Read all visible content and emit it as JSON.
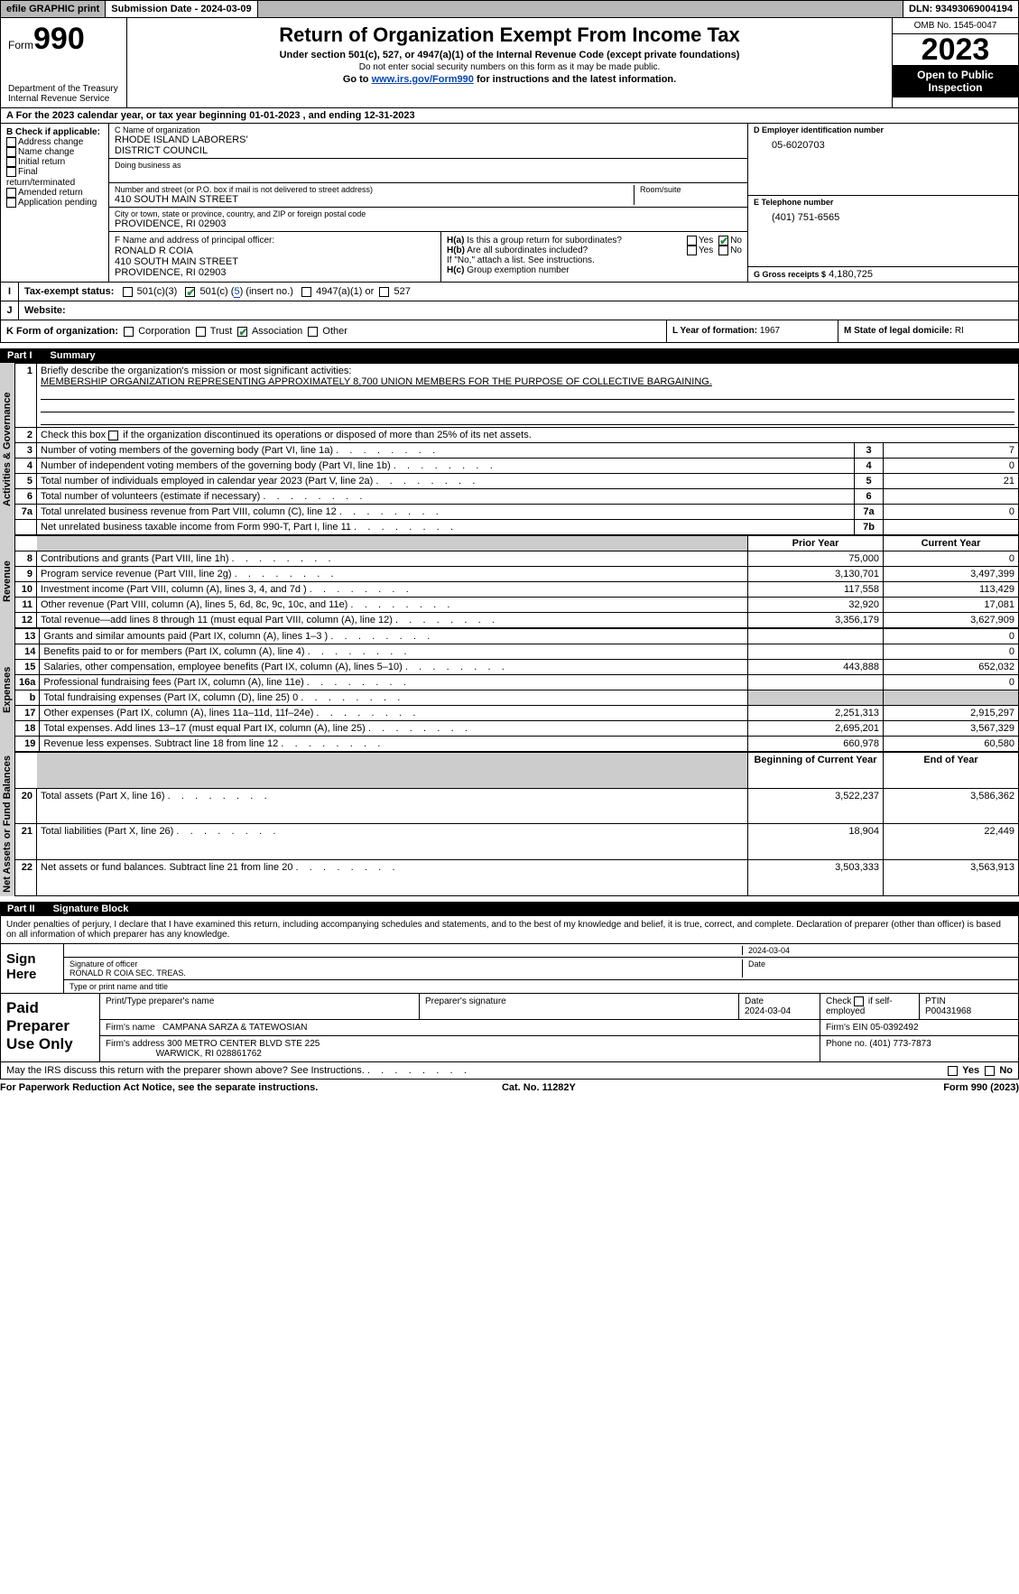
{
  "topbar": {
    "efile": "efile GRAPHIC print",
    "submission": "Submission Date - 2024-03-09",
    "dln": "DLN: 93493069004194"
  },
  "header": {
    "form_label": "Form",
    "form_no": "990",
    "dept1": "Department of the Treasury",
    "dept2": "Internal Revenue Service",
    "title": "Return of Organization Exempt From Income Tax",
    "sub1": "Under section 501(c), 527, or 4947(a)(1) of the Internal Revenue Code (except private foundations)",
    "sub2": "Do not enter social security numbers on this form as it may be made public.",
    "sub3_a": "Go to ",
    "sub3_link": "www.irs.gov/Form990",
    "sub3_b": " for instructions and the latest information.",
    "omb": "OMB No. 1545-0047",
    "year": "2023",
    "open": "Open to Public Inspection"
  },
  "rowA": "For the 2023 calendar year, or tax year beginning 01-01-2023    , and ending 12-31-2023",
  "B": {
    "hdr": "B Check if applicable:",
    "opts": [
      "Address change",
      "Name change",
      "Initial return",
      "Final return/terminated",
      "Amended return",
      "Application pending"
    ]
  },
  "C": {
    "name_lbl": "C Name of organization",
    "name1": "RHODE ISLAND LABORERS'",
    "name2": "DISTRICT COUNCIL",
    "dba_lbl": "Doing business as",
    "addr_lbl": "Number and street (or P.O. box if mail is not delivered to street address)",
    "addr": "410 SOUTH MAIN STREET",
    "room_lbl": "Room/suite",
    "city_lbl": "City or town, state or province, country, and ZIP or foreign postal code",
    "city": "PROVIDENCE, RI  02903"
  },
  "D": {
    "lbl": "D Employer identification number",
    "val": "05-6020703"
  },
  "E": {
    "lbl": "E Telephone number",
    "val": "(401) 751-6565"
  },
  "G": {
    "lbl": "G Gross receipts $",
    "val": "4,180,725"
  },
  "F": {
    "lbl": "F  Name and address of principal officer:",
    "l1": "RONALD R COIA",
    "l2": "410 SOUTH MAIN STREET",
    "l3": "PROVIDENCE, RI  02903"
  },
  "H": {
    "a_lbl": "H(a)  Is this a group return for subordinates?",
    "b_lbl": "H(b)  Are all subordinates included?",
    "b_note": "If \"No,\" attach a list. See instructions.",
    "c_lbl": "H(c)  Group exemption number",
    "yes": "Yes",
    "no": "No"
  },
  "I": {
    "lbl": "Tax-exempt status:",
    "o1": "501(c)(3)",
    "o2a": "501(c) (",
    "o2b": "5",
    "o2c": ") (insert no.)",
    "o3": "4947(a)(1) or",
    "o4": "527"
  },
  "J": {
    "lbl": "Website:"
  },
  "K": {
    "lbl": "K Form of organization:",
    "o1": "Corporation",
    "o2": "Trust",
    "o3": "Association",
    "o4": "Other"
  },
  "L": {
    "lbl": "L Year of formation:",
    "val": "1967"
  },
  "M": {
    "lbl": "M State of legal domicile:",
    "val": "RI"
  },
  "part1": {
    "no": "Part I",
    "title": "Summary"
  },
  "summary": {
    "q1_lbl": "Briefly describe the organization's mission or most significant activities:",
    "q1_val": "MEMBERSHIP ORGANIZATION REPRESENTING APPROXIMATELY 8,700 UNION MEMBERS FOR THE PURPOSE OF COLLECTIVE BARGAINING.",
    "q2": "Check this box         if the organization discontinued its operations or disposed of more than 25% of its net assets.",
    "rows_gov": [
      {
        "n": "3",
        "d": "Number of voting members of the governing body (Part VI, line 1a)",
        "k": "3",
        "v": "7"
      },
      {
        "n": "4",
        "d": "Number of independent voting members of the governing body (Part VI, line 1b)",
        "k": "4",
        "v": "0"
      },
      {
        "n": "5",
        "d": "Total number of individuals employed in calendar year 2023 (Part V, line 2a)",
        "k": "5",
        "v": "21"
      },
      {
        "n": "6",
        "d": "Total number of volunteers (estimate if necessary)",
        "k": "6",
        "v": ""
      },
      {
        "n": "7a",
        "d": "Total unrelated business revenue from Part VIII, column (C), line 12",
        "k": "7a",
        "v": "0"
      },
      {
        "n": "",
        "d": "Net unrelated business taxable income from Form 990-T, Part I, line 11",
        "k": "7b",
        "v": ""
      }
    ],
    "hdr_prior": "Prior Year",
    "hdr_curr": "Current Year",
    "rows_rev": [
      {
        "n": "8",
        "d": "Contributions and grants (Part VIII, line 1h)",
        "p": "75,000",
        "c": "0"
      },
      {
        "n": "9",
        "d": "Program service revenue (Part VIII, line 2g)",
        "p": "3,130,701",
        "c": "3,497,399"
      },
      {
        "n": "10",
        "d": "Investment income (Part VIII, column (A), lines 3, 4, and 7d )",
        "p": "117,558",
        "c": "113,429"
      },
      {
        "n": "11",
        "d": "Other revenue (Part VIII, column (A), lines 5, 6d, 8c, 9c, 10c, and 11e)",
        "p": "32,920",
        "c": "17,081"
      },
      {
        "n": "12",
        "d": "Total revenue—add lines 8 through 11 (must equal Part VIII, column (A), line 12)",
        "p": "3,356,179",
        "c": "3,627,909"
      }
    ],
    "rows_exp": [
      {
        "n": "13",
        "d": "Grants and similar amounts paid (Part IX, column (A), lines 1–3 )",
        "p": "",
        "c": "0"
      },
      {
        "n": "14",
        "d": "Benefits paid to or for members (Part IX, column (A), line 4)",
        "p": "",
        "c": "0"
      },
      {
        "n": "15",
        "d": "Salaries, other compensation, employee benefits (Part IX, column (A), lines 5–10)",
        "p": "443,888",
        "c": "652,032"
      },
      {
        "n": "16a",
        "d": "Professional fundraising fees (Part IX, column (A), line 11e)",
        "p": "",
        "c": "0"
      },
      {
        "n": "b",
        "d": "Total fundraising expenses (Part IX, column (D), line 25) 0",
        "p": "shade",
        "c": "shade"
      },
      {
        "n": "17",
        "d": "Other expenses (Part IX, column (A), lines 11a–11d, 11f–24e)",
        "p": "2,251,313",
        "c": "2,915,297"
      },
      {
        "n": "18",
        "d": "Total expenses. Add lines 13–17 (must equal Part IX, column (A), line 25)",
        "p": "2,695,201",
        "c": "3,567,329"
      },
      {
        "n": "19",
        "d": "Revenue less expenses. Subtract line 18 from line 12",
        "p": "660,978",
        "c": "60,580"
      }
    ],
    "hdr_beg": "Beginning of Current Year",
    "hdr_end": "End of Year",
    "rows_na": [
      {
        "n": "20",
        "d": "Total assets (Part X, line 16)",
        "p": "3,522,237",
        "c": "3,586,362"
      },
      {
        "n": "21",
        "d": "Total liabilities (Part X, line 26)",
        "p": "18,904",
        "c": "22,449"
      },
      {
        "n": "22",
        "d": "Net assets or fund balances. Subtract line 21 from line 20",
        "p": "3,503,333",
        "c": "3,563,913"
      }
    ],
    "vlab_gov": "Activities & Governance",
    "vlab_rev": "Revenue",
    "vlab_exp": "Expenses",
    "vlab_na": "Net Assets or Fund Balances"
  },
  "part2": {
    "no": "Part II",
    "title": "Signature Block"
  },
  "sig": {
    "decl": "Under penalties of perjury, I declare that I have examined this return, including accompanying schedules and statements, and to the best of my knowledge and belief, it is true, correct, and complete. Declaration of preparer (other than officer) is based on all information of which preparer has any knowledge.",
    "sign_here": "Sign Here",
    "date_top": "2024-03-04",
    "sig_off_lbl": "Signature of officer",
    "sig_off_val": "RONALD R COIA  SEC. TREAS.",
    "date_lbl": "Date",
    "type_lbl": "Type or print name and title"
  },
  "prep": {
    "lab": "Paid Preparer Use Only",
    "h1": "Print/Type preparer's name",
    "h2": "Preparer's signature",
    "h3": "Date",
    "h3v": "2024-03-04",
    "h4a": "Check",
    "h4b": "if self-employed",
    "h5": "PTIN",
    "h5v": "P00431968",
    "firm_lbl": "Firm's name",
    "firm": "CAMPANA SARZA & TATEWOSIAN",
    "ein_lbl": "Firm's EIN",
    "ein": "05-0392492",
    "addr_lbl": "Firm's address",
    "addr1": "300 METRO CENTER BLVD STE 225",
    "addr2": "WARWICK, RI  028861762",
    "phone_lbl": "Phone no.",
    "phone": "(401) 773-7873"
  },
  "may": {
    "q": "May the IRS discuss this return with the preparer shown above? See Instructions.",
    "yes": "Yes",
    "no": "No"
  },
  "foot": {
    "l": "For Paperwork Reduction Act Notice, see the separate instructions.",
    "m": "Cat. No. 11282Y",
    "r": "Form 990 (2023)"
  },
  "colors": {
    "link": "#0645ad",
    "check_green": "#2d8a3d",
    "gray_bg": "#b8b8b8",
    "shade": "#cccccc",
    "vlabel_bg": "#d0d0d0"
  }
}
